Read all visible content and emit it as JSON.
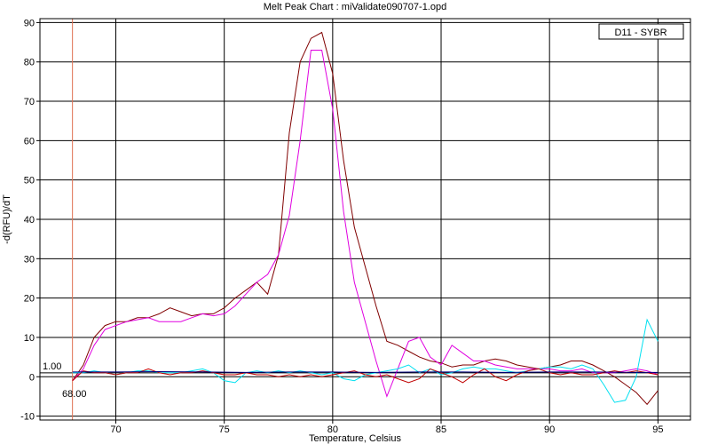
{
  "chart_data": {
    "type": "line",
    "title": "Melt Peak Chart : miValidate090707-1.opd",
    "xlabel": "Temperature, Celsius",
    "ylabel": "-d(RFU)/dT",
    "xlim": [
      66.5,
      96.5
    ],
    "ylim": [
      -11,
      91
    ],
    "xticks": [
      70,
      75,
      80,
      85,
      90,
      95
    ],
    "yticks": [
      -10,
      0,
      10,
      20,
      30,
      40,
      50,
      60,
      70,
      80,
      90
    ],
    "grid": true,
    "legend": {
      "position": "top-right",
      "label": "D11 - SYBR"
    },
    "threshold": {
      "value": 1.0,
      "label": "1.00",
      "color": "#000000"
    },
    "marker": {
      "x": 68.0,
      "label": "68.00",
      "color": "#e07050"
    },
    "series": [
      {
        "color": "#800000",
        "x": [
          68.0,
          68.5,
          69.0,
          69.5,
          70.0,
          70.5,
          71.0,
          71.5,
          72.0,
          72.5,
          73.0,
          73.5,
          74.0,
          74.5,
          75.0,
          75.5,
          76.0,
          76.5,
          77.0,
          77.5,
          78.0,
          78.5,
          79.0,
          79.5,
          80.0,
          80.5,
          81.0,
          81.5,
          82.0,
          82.5,
          83.0,
          83.5,
          84.0,
          84.5,
          85.0,
          85.5,
          86.0,
          86.5,
          87.0,
          87.5,
          88.0,
          88.5,
          89.0,
          89.5,
          90.0,
          90.5,
          91.0,
          91.5,
          92.0,
          92.5,
          93.0,
          93.5,
          94.0,
          94.5,
          95.0
        ],
        "y": [
          -1,
          3,
          10,
          13,
          14,
          14,
          15,
          15,
          16,
          17.5,
          16.5,
          15.5,
          16,
          16,
          17.5,
          20,
          22,
          24,
          21,
          31,
          62,
          80,
          86,
          87.5,
          77,
          55,
          38,
          28,
          18,
          9,
          8,
          6.5,
          5,
          4,
          3.5,
          2.5,
          3,
          3,
          4,
          4.5,
          4,
          3,
          2.5,
          2,
          2.5,
          3,
          4,
          4,
          3,
          1.5,
          0,
          -2,
          -4,
          -7,
          -3.5
        ]
      },
      {
        "color": "#e000e0",
        "x": [
          68.0,
          68.5,
          69.0,
          69.5,
          70.0,
          70.5,
          71.0,
          71.5,
          72.0,
          72.5,
          73.0,
          73.5,
          74.0,
          74.5,
          75.0,
          75.5,
          76.0,
          76.5,
          77.0,
          77.5,
          78.0,
          78.5,
          79.0,
          79.5,
          80.0,
          80.5,
          81.0,
          81.5,
          82.0,
          82.5,
          83.0,
          83.5,
          84.0,
          84.5,
          85.0,
          85.5,
          86.0,
          86.5,
          87.0,
          87.5,
          88.0,
          88.5,
          89.0,
          89.5,
          90.0,
          90.5,
          91.0,
          91.5,
          92.0,
          92.5,
          93.0,
          93.5,
          94.0,
          94.5,
          95.0
        ],
        "y": [
          -1,
          2,
          8,
          12,
          13,
          14,
          14.5,
          15,
          14,
          14,
          14,
          15,
          16,
          15.5,
          16,
          18,
          21,
          24,
          26,
          31,
          41,
          60,
          83,
          83,
          68,
          42,
          24,
          14,
          4,
          -5,
          2,
          9,
          10,
          5,
          3,
          8,
          6,
          4,
          4,
          3,
          2.5,
          2,
          2,
          2,
          2,
          1.5,
          1.5,
          2,
          1,
          1,
          1,
          1.5,
          2,
          1.5,
          0.5
        ]
      },
      {
        "color": "#00e0f0",
        "x": [
          68.0,
          68.5,
          69.0,
          69.5,
          70.0,
          70.5,
          71.0,
          71.5,
          72.0,
          72.5,
          73.0,
          73.5,
          74.0,
          74.5,
          75.0,
          75.5,
          76.0,
          76.5,
          77.0,
          77.5,
          78.0,
          78.5,
          79.0,
          79.5,
          80.0,
          80.5,
          81.0,
          81.5,
          82.0,
          82.5,
          83.0,
          83.5,
          84.0,
          84.5,
          85.0,
          85.5,
          86.0,
          86.5,
          87.0,
          87.5,
          88.0,
          88.5,
          89.0,
          89.5,
          90.0,
          90.5,
          91.0,
          91.5,
          92.0,
          92.5,
          93.0,
          93.5,
          94.0,
          94.5,
          95.0
        ],
        "y": [
          1,
          1,
          1.5,
          1,
          0.5,
          1,
          1.5,
          1.5,
          1,
          1,
          1,
          1.5,
          2,
          1,
          -1,
          -1.5,
          1,
          1.5,
          1,
          1.5,
          1,
          1.5,
          1,
          0.5,
          1,
          -0.5,
          -1,
          0.5,
          1,
          1.5,
          2,
          3,
          1,
          2,
          0.5,
          1,
          2,
          2.5,
          2,
          2,
          1.5,
          1,
          1.5,
          2,
          2.5,
          2.5,
          2,
          3,
          2,
          -2,
          -6.5,
          -6,
          0,
          14.5,
          9
        ]
      },
      {
        "color": "#c00000",
        "x": [
          68.0,
          68.5,
          69.0,
          69.5,
          70.0,
          70.5,
          71.0,
          71.5,
          72.0,
          72.5,
          73.0,
          73.5,
          74.0,
          74.5,
          75.0,
          75.5,
          76.0,
          76.5,
          77.0,
          77.5,
          78.0,
          78.5,
          79.0,
          79.5,
          80.0,
          80.5,
          81.0,
          81.5,
          82.0,
          82.5,
          83.0,
          83.5,
          84.0,
          84.5,
          85.0,
          85.5,
          86.0,
          86.5,
          87.0,
          87.5,
          88.0,
          88.5,
          89.0,
          89.5,
          90.0,
          90.5,
          91.0,
          91.5,
          92.0,
          92.5,
          93.0,
          93.5,
          94.0,
          94.5,
          95.0
        ],
        "y": [
          -1,
          1.5,
          1,
          1,
          0.5,
          1,
          1,
          2,
          1,
          0.5,
          1,
          1,
          1.5,
          1,
          0.5,
          0.5,
          1,
          0.5,
          0.5,
          0,
          0.5,
          0,
          0.5,
          0,
          0.5,
          1,
          1.5,
          0.5,
          0,
          0.5,
          -0.5,
          -1.5,
          -0.5,
          2,
          1,
          0,
          -1.5,
          0.5,
          2,
          0,
          -1,
          0.5,
          1.5,
          2,
          1,
          0.5,
          1,
          0.5,
          0.5,
          1,
          1.5,
          1,
          1.5,
          1,
          0.5
        ]
      },
      {
        "color": "#000080",
        "x": [
          68.0,
          70.0,
          72.0,
          74.0,
          76.0,
          78.0,
          80.0,
          82.0,
          84.0,
          86.0,
          88.0,
          90.0,
          92.0,
          94.0,
          95.0
        ],
        "y": [
          1.2,
          1.2,
          1.3,
          1.2,
          1.1,
          1.2,
          1.2,
          1.1,
          1.2,
          1.2,
          1.1,
          1.2,
          1.2,
          1.1,
          1.1
        ]
      }
    ]
  }
}
